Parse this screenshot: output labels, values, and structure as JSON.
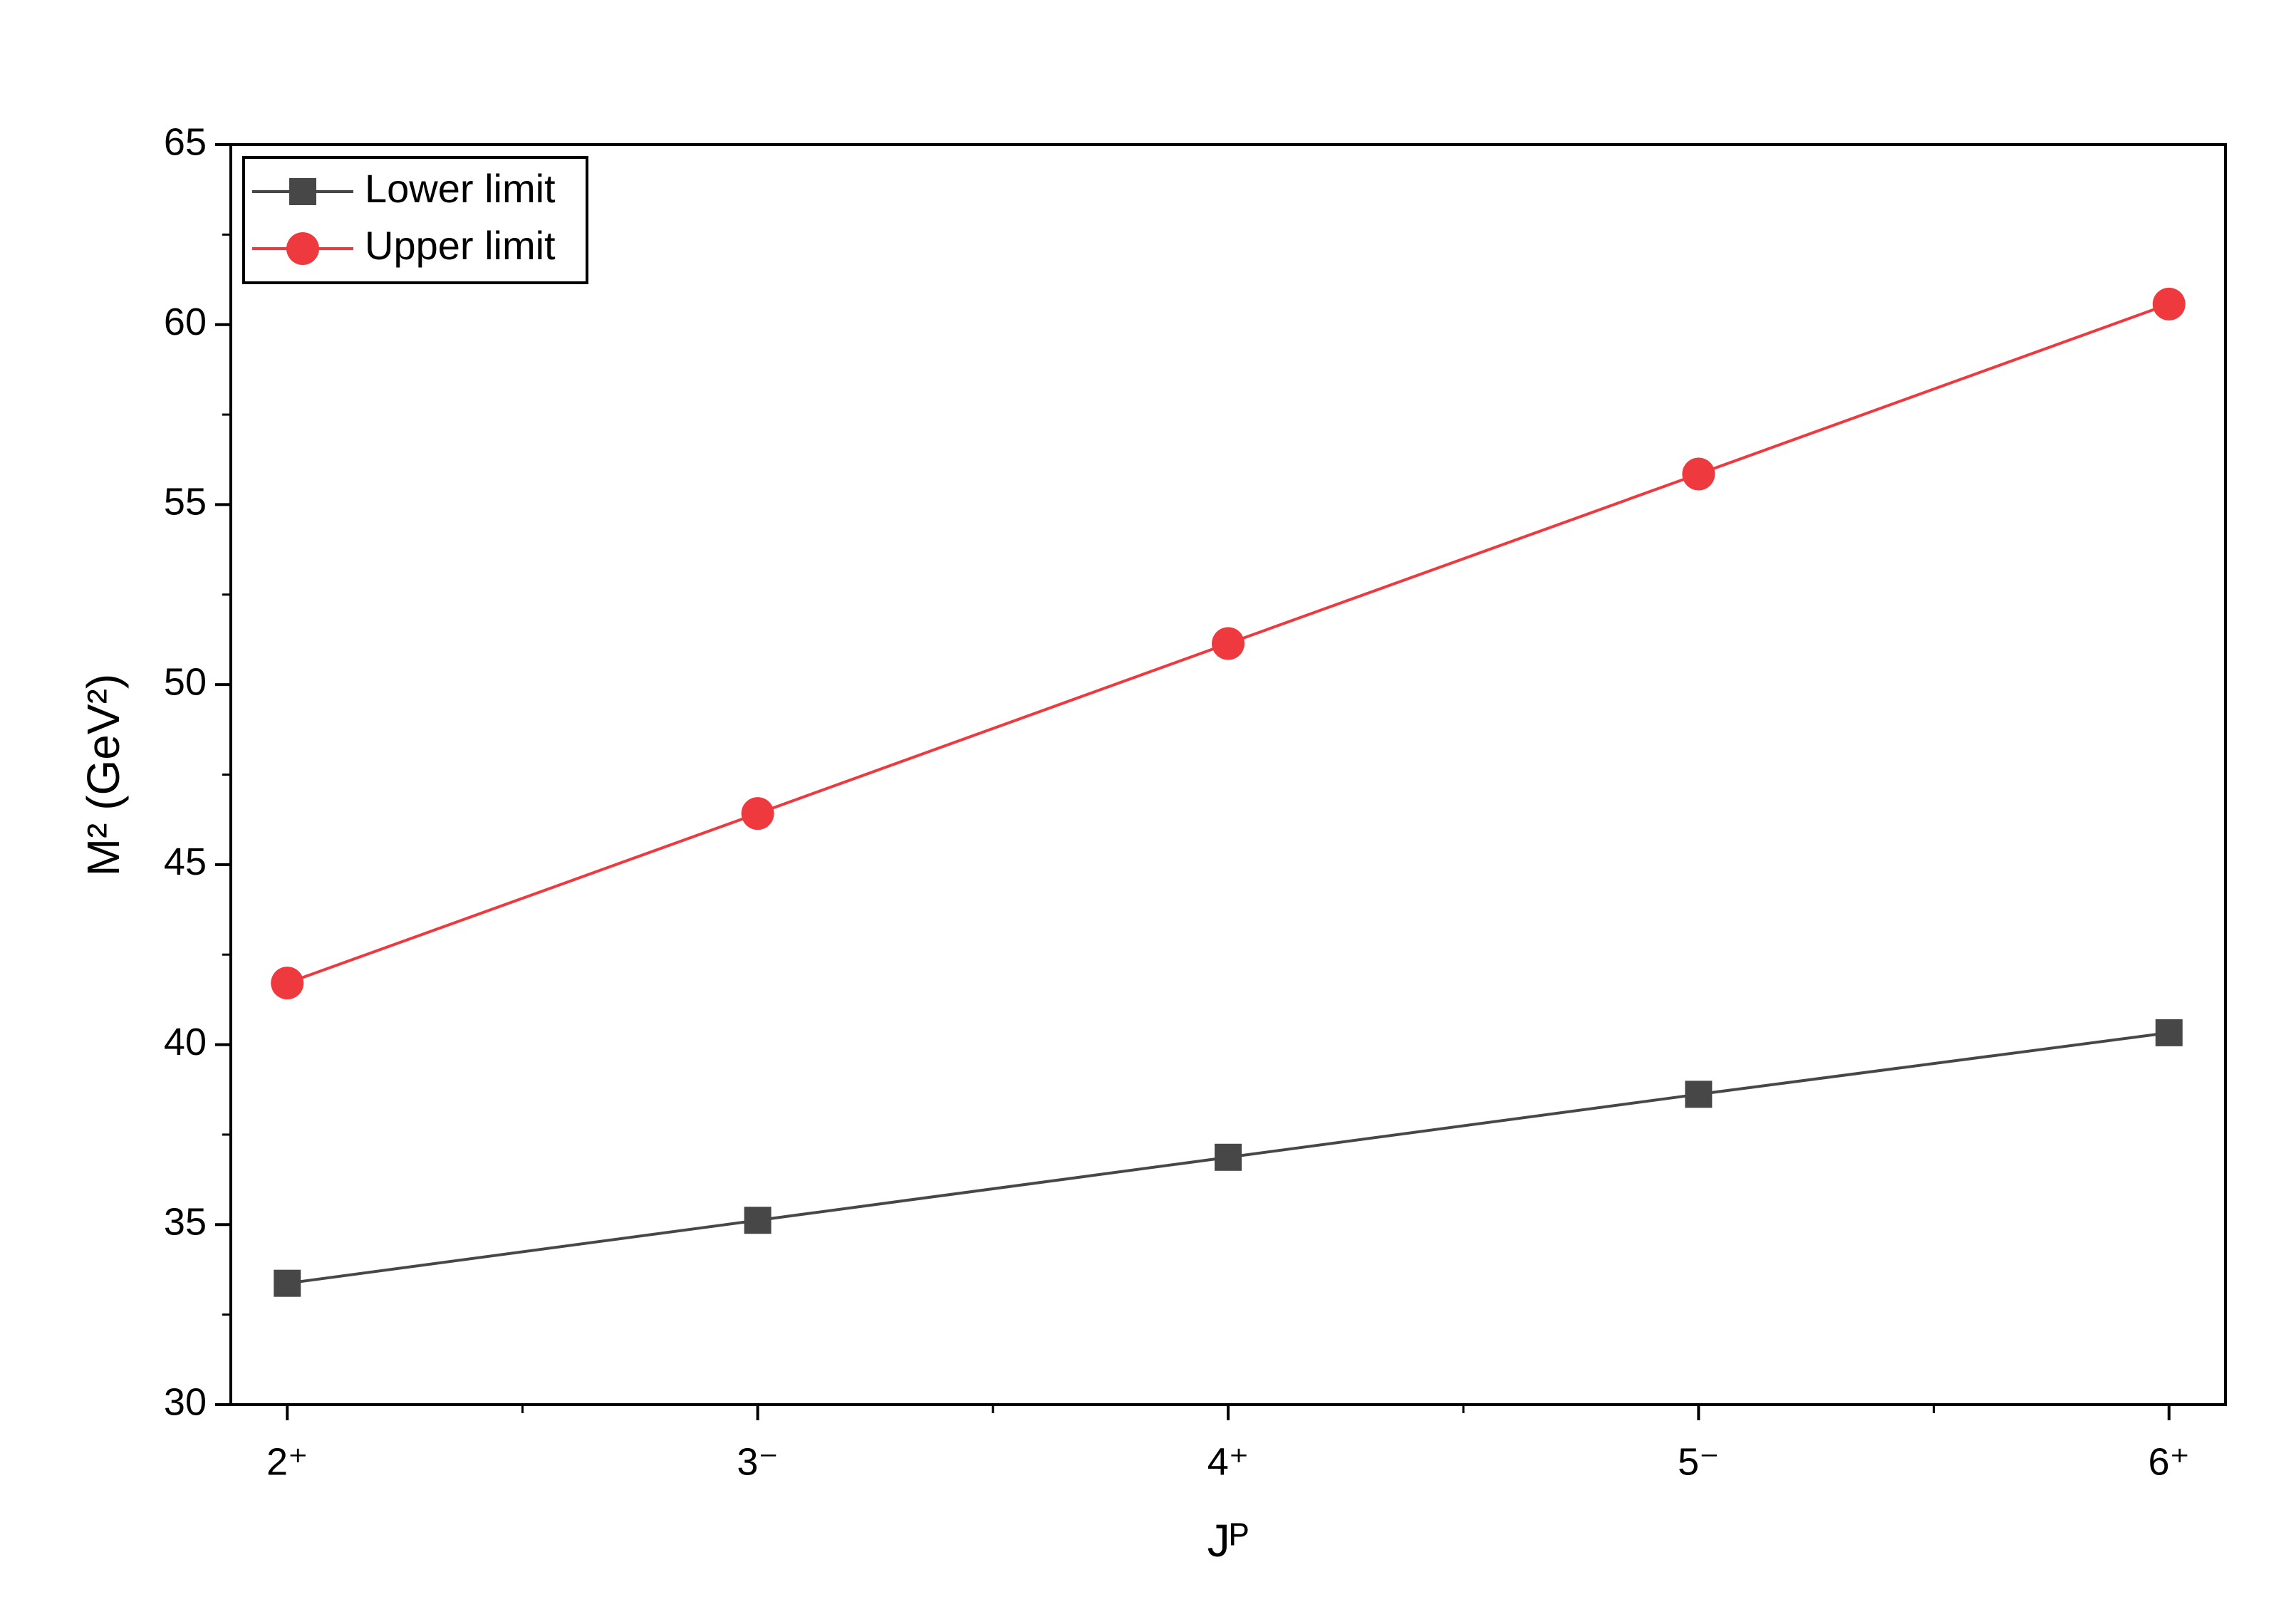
{
  "chart_data": {
    "type": "line",
    "x_label": "Jᴾ",
    "y_label": "M² (GeV²)",
    "categories": [
      "2⁺",
      "3⁻",
      "4⁺",
      "5⁻",
      "6⁺"
    ],
    "series": [
      {
        "name": "Lower limit",
        "color": "#474747",
        "marker": "square",
        "values": [
          33.37,
          35.12,
          36.87,
          38.62,
          40.33
        ]
      },
      {
        "name": "Upper limit",
        "color": "#ee3a3f",
        "marker": "circle",
        "values": [
          41.71,
          46.42,
          51.14,
          55.85,
          60.57
        ]
      }
    ],
    "ylim": [
      30,
      65
    ],
    "yticks": [
      30,
      35,
      40,
      45,
      50,
      55,
      60,
      65
    ],
    "legend": "upper-left",
    "grid": false
  }
}
